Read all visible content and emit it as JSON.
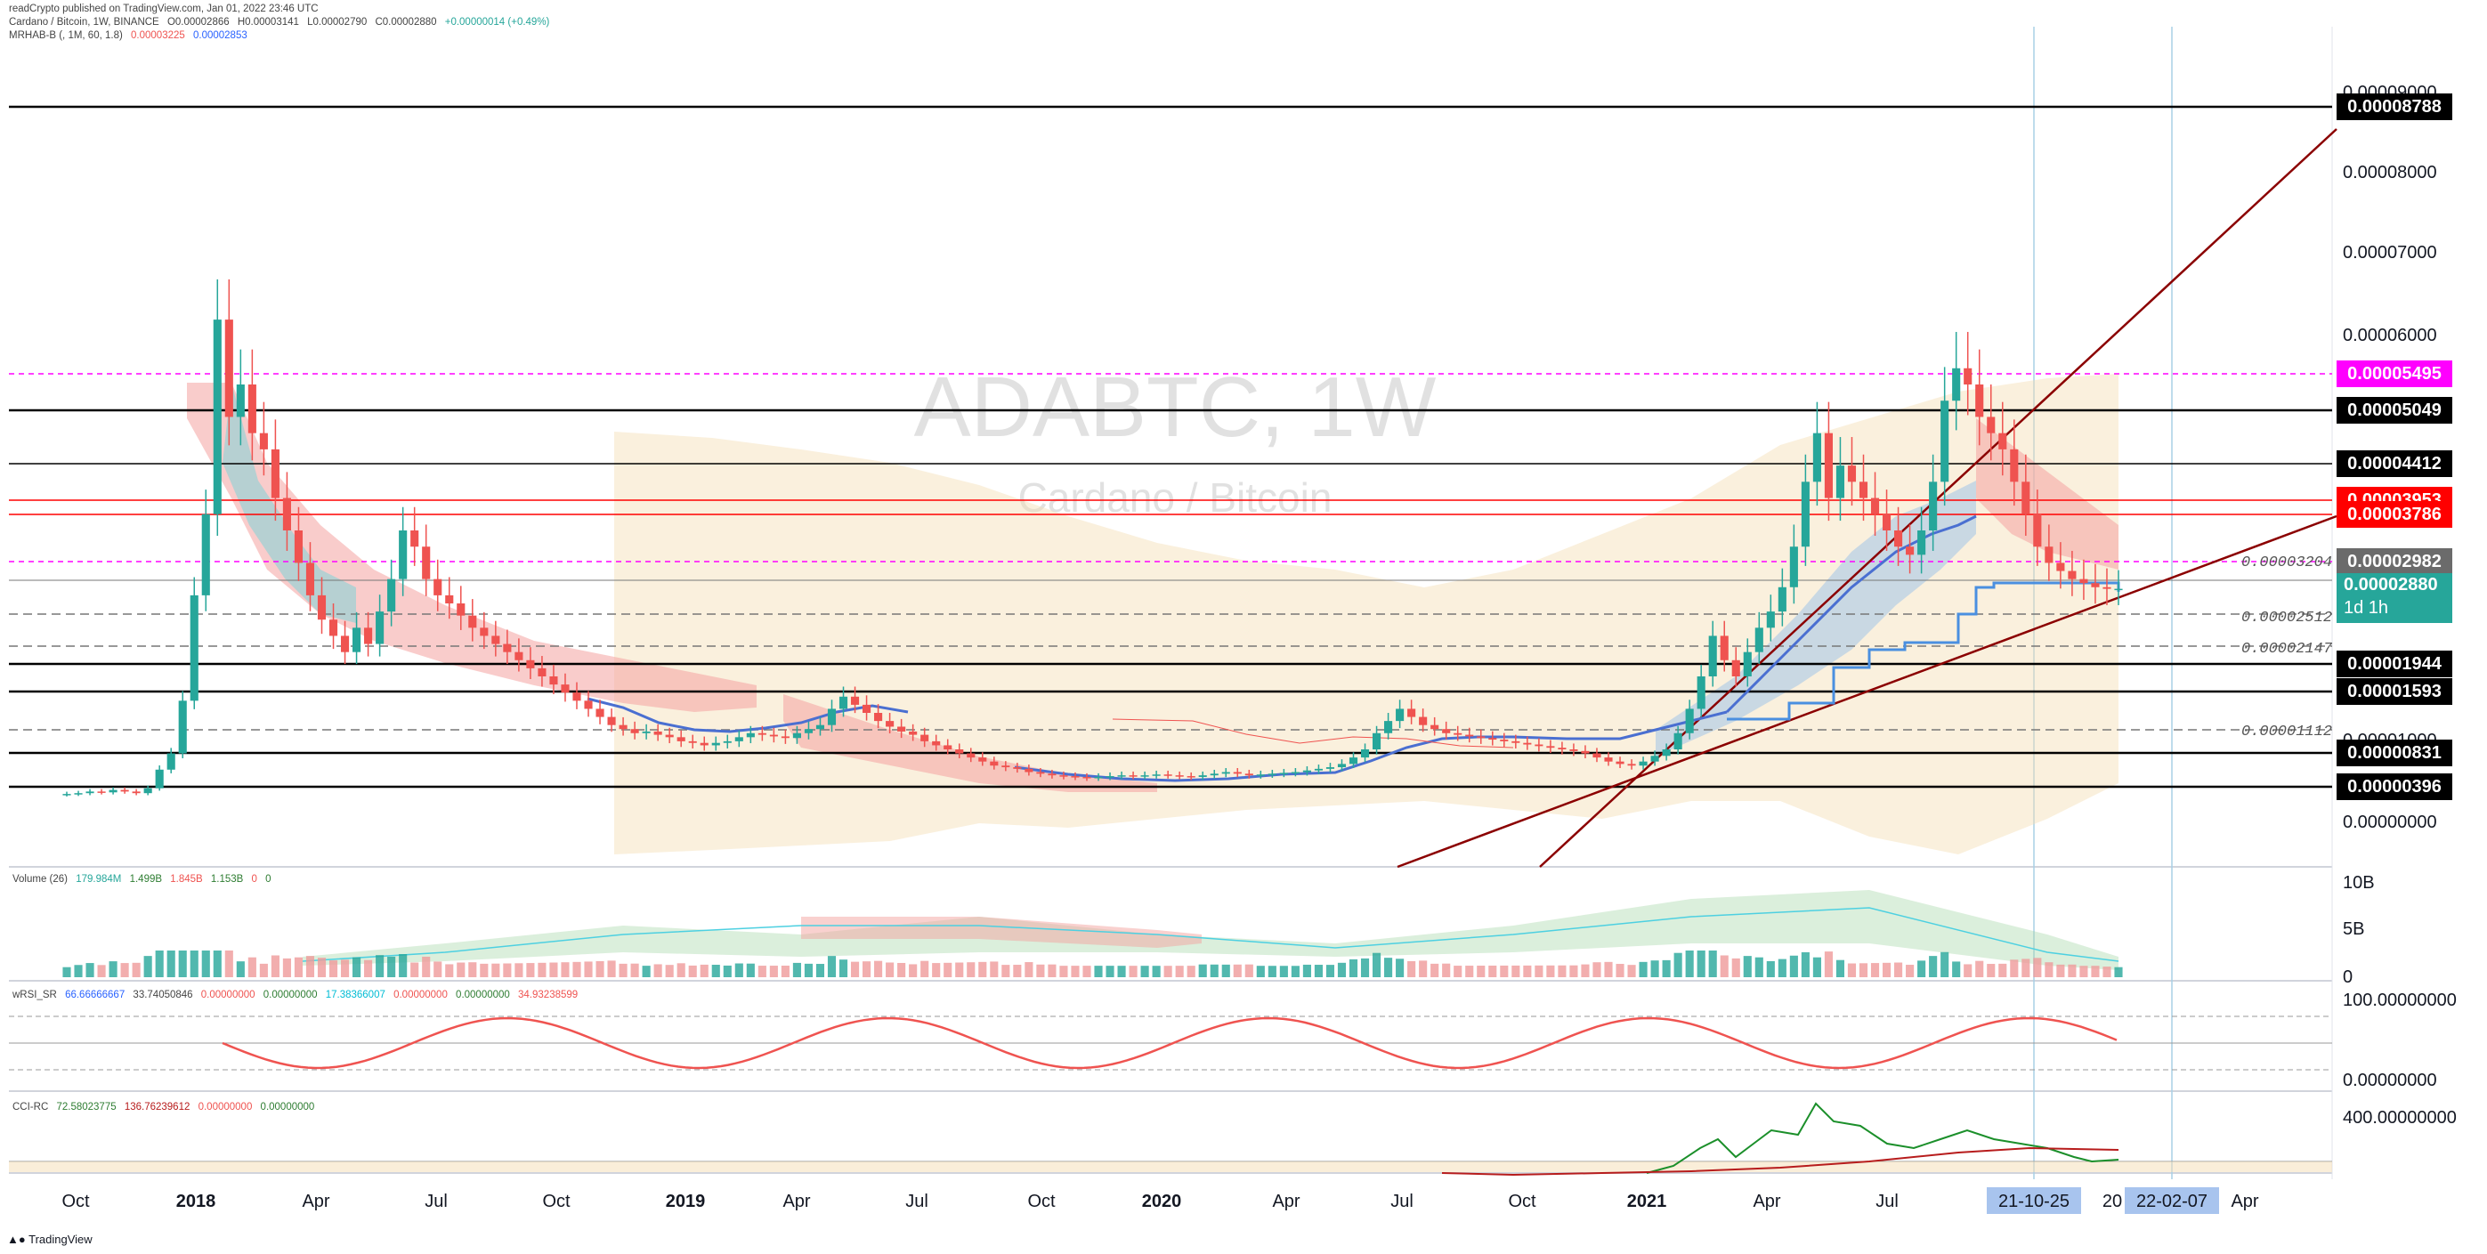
{
  "header": {
    "published": "readCrypto published on TradingView.com, Jan 01, 2022 23:46 UTC",
    "symbol_line": "Cardano / Bitcoin, 1W, BINANCE",
    "ohlc": {
      "o": "O0.00002866",
      "h": "H0.00003141",
      "l": "L0.00002790",
      "c": "C0.00002880",
      "chg": "+0.00000014 (+0.49%)"
    },
    "mrhab_name": "MRHAB-B (, 1M, 60, 1.8)",
    "mrhab_v1": "0.00003225",
    "mrhab_v2": "0.00002853"
  },
  "watermark": {
    "symbol": "ADABTC, 1W",
    "name": "Cardano / Bitcoin"
  },
  "colors": {
    "black_level": "#000000",
    "magenta": "#ff00ff",
    "red": "#ff0000",
    "teal": "#26a69a",
    "gray": "#777777",
    "up": "#26a69a",
    "down": "#ef5350",
    "trendline": "#8b0000",
    "bb_fill": "#f5deb3",
    "cloud_up": "#7fd3d8",
    "cloud_down": "#f4a3a0"
  },
  "chart_data": {
    "type": "candlestick",
    "title": "ADABTC, 1W",
    "subtitle": "Cardano / Bitcoin",
    "y_ticks": [
      "0.00009000",
      "0.00008000",
      "0.00007000",
      "0.00006000",
      "0.00001000",
      "0.00000000"
    ],
    "x_ticks": [
      "Oct",
      "2018",
      "Apr",
      "Jul",
      "Oct",
      "2019",
      "Apr",
      "Jul",
      "Oct",
      "2020",
      "Apr",
      "Jul",
      "Oct",
      "2021",
      "Apr",
      "Jul",
      "21-10-25",
      "20",
      "22-02-07",
      "Apr"
    ],
    "price_labels": [
      {
        "text": "0.00008788",
        "style": "black"
      },
      {
        "text": "0.00005495",
        "style": "magenta"
      },
      {
        "text": "0.00005049",
        "style": "black"
      },
      {
        "text": "0.00004412",
        "style": "black"
      },
      {
        "text": "0.00003953",
        "style": "red"
      },
      {
        "text": "0.00003786",
        "style": "red"
      },
      {
        "text": "0.00002982",
        "style": "gray"
      },
      {
        "text": "0.00002880",
        "style": "teal",
        "sub": "1d 1h"
      },
      {
        "text": "0.00001944",
        "style": "black"
      },
      {
        "text": "0.00001593",
        "style": "black"
      },
      {
        "text": "0.00000831",
        "style": "black"
      },
      {
        "text": "0.00000396",
        "style": "black"
      }
    ],
    "line_annotations": [
      "0.00003204",
      "0.00002512",
      "0.00002147",
      "0.00001112"
    ],
    "candles_weekly_close": [
      3.5e-06,
      3.6e-06,
      3.8e-06,
      3.7e-06,
      4e-06,
      3.8e-06,
      3.6e-06,
      4.2e-06,
      6.5e-06,
      8.5e-06,
      1.5e-05,
      2.8e-05,
      3.8e-05,
      6.2e-05,
      5e-05,
      5.4e-05,
      4.8e-05,
      4.6e-05,
      4e-05,
      3.6e-05,
      3.2e-05,
      2.8e-05,
      2.5e-05,
      2.3e-05,
      2.1e-05,
      2.4e-05,
      2.2e-05,
      2.6e-05,
      3e-05,
      3.6e-05,
      3.4e-05,
      3e-05,
      2.8e-05,
      2.7e-05,
      2.55e-05,
      2.4e-05,
      2.3e-05,
      2.2e-05,
      2.1e-05,
      2e-05,
      1.9e-05,
      1.8e-05,
      1.7e-05,
      1.6e-05,
      1.5e-05,
      1.4e-05,
      1.3e-05,
      1.2e-05,
      1.15e-05,
      1.1e-05,
      1.12e-05,
      1.08e-05,
      1.05e-05,
      1e-05,
      9.8e-06,
      9.5e-06,
      9.8e-06,
      1e-05,
      1.05e-05,
      1.1e-05,
      1.08e-05,
      1.06e-05,
      1.04e-05,
      1.1e-05,
      1.15e-05,
      1.2e-05,
      1.4e-05,
      1.55e-05,
      1.45e-05,
      1.35e-05,
      1.25e-05,
      1.18e-05,
      1.12e-05,
      1.08e-05,
      1e-05,
      9.5e-06,
      9e-06,
      8.5e-06,
      8e-06,
      7.5e-06,
      7e-06,
      6.8e-06,
      6.6e-06,
      6.2e-06,
      6e-06,
      5.8e-06,
      5.7e-06,
      5.6e-06,
      5.5e-06,
      5.6e-06,
      5.7e-06,
      5.8e-06,
      5.7e-06,
      5.8e-06,
      5.9e-06,
      5.8e-06,
      5.7e-06,
      5.6e-06,
      5.8e-06,
      6e-06,
      6.2e-06,
      6e-06,
      5.8e-06,
      5.9e-06,
      6e-06,
      6.1e-06,
      6.2e-06,
      6.4e-06,
      6.6e-06,
      6.8e-06,
      7.2e-06,
      8e-06,
      9e-06,
      1.1e-05,
      1.25e-05,
      1.4e-05,
      1.3e-05,
      1.2e-05,
      1.15e-05,
      1.1e-05,
      1.08e-05,
      1.06e-05,
      1.04e-05,
      1.02e-05,
      1e-05,
      9.8e-06,
      9.6e-06,
      9.4e-06,
      9.2e-06,
      9e-06,
      8.8e-06,
      8.5e-06,
      8e-06,
      7.5e-06,
      7.2e-06,
      7e-06,
      7.5e-06,
      8.2e-06,
      9e-06,
      1.1e-05,
      1.4e-05,
      1.8e-05,
      2.3e-05,
      2e-05,
      1.8e-05,
      2.1e-05,
      2.4e-05,
      2.6e-05,
      2.9e-05,
      3.4e-05,
      4.2e-05,
      4.8e-05,
      4e-05,
      4.4e-05,
      4.2e-05,
      4e-05,
      3.8e-05,
      3.6e-05,
      3.4e-05,
      3.3e-05,
      3.6e-05,
      4.2e-05,
      5.2e-05,
      5.6e-05,
      5.4e-05,
      5e-05,
      4.8e-05,
      4.6e-05,
      4.2e-05,
      3.8e-05,
      3.4e-05,
      3.2e-05,
      3.1e-05,
      3e-05,
      2.95e-05,
      2.9e-05,
      2.88e-05,
      2.88e-05
    ],
    "indicators": [
      {
        "name": "Volume (26)",
        "values": [
          "179.984M",
          "1.499B",
          "1.845B",
          "1.153B",
          "0",
          "0"
        ],
        "ticks": [
          "10B",
          "5B",
          "0"
        ]
      },
      {
        "name": "wRSI_SR",
        "values": [
          "66.66666667",
          "33.74050846",
          "0.00000000",
          "0.00000000",
          "17.38366007",
          "0.00000000",
          "0.00000000",
          "34.93238599"
        ],
        "ticks": [
          "100.00000000",
          "0.00000000"
        ]
      },
      {
        "name": "CCI-RC",
        "values": [
          "72.58023775",
          "136.76239612",
          "0.00000000",
          "0.00000000"
        ],
        "ticks": [
          "400.00000000"
        ]
      }
    ]
  },
  "footer": {
    "brand": "TradingView"
  }
}
